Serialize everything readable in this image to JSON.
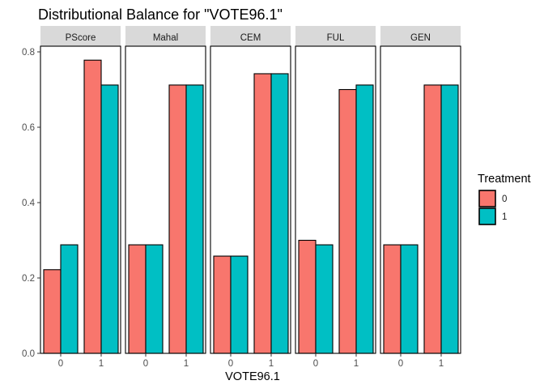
{
  "chart_data": {
    "type": "bar",
    "title": "Distributional Balance for \"VOTE96.1\"",
    "xlabel": "VOTE96.1",
    "ylabel": "",
    "ylim": [
      0,
      0.8
    ],
    "yticks": [
      "0.0",
      "0.2",
      "0.4",
      "0.6",
      "0.8"
    ],
    "categories": [
      "0",
      "1"
    ],
    "legend": {
      "title": "Treatment",
      "placement": "right",
      "entries": [
        {
          "label": "0",
          "color": "#F8766D"
        },
        {
          "label": "1",
          "color": "#00BFC4"
        }
      ]
    },
    "facets": [
      {
        "name": "PScore",
        "series": [
          {
            "name": "0",
            "values": [
              0.222,
              0.778
            ]
          },
          {
            "name": "1",
            "values": [
              0.288,
              0.712
            ]
          }
        ]
      },
      {
        "name": "Mahal",
        "series": [
          {
            "name": "0",
            "values": [
              0.288,
              0.712
            ]
          },
          {
            "name": "1",
            "values": [
              0.288,
              0.712
            ]
          }
        ]
      },
      {
        "name": "CEM",
        "series": [
          {
            "name": "0",
            "values": [
              0.258,
              0.742
            ]
          },
          {
            "name": "1",
            "values": [
              0.258,
              0.742
            ]
          }
        ]
      },
      {
        "name": "FUL",
        "series": [
          {
            "name": "0",
            "values": [
              0.3,
              0.7
            ]
          },
          {
            "name": "1",
            "values": [
              0.288,
              0.712
            ]
          }
        ]
      },
      {
        "name": "GEN",
        "series": [
          {
            "name": "0",
            "values": [
              0.288,
              0.712
            ]
          },
          {
            "name": "1",
            "values": [
              0.288,
              0.712
            ]
          }
        ]
      }
    ]
  }
}
